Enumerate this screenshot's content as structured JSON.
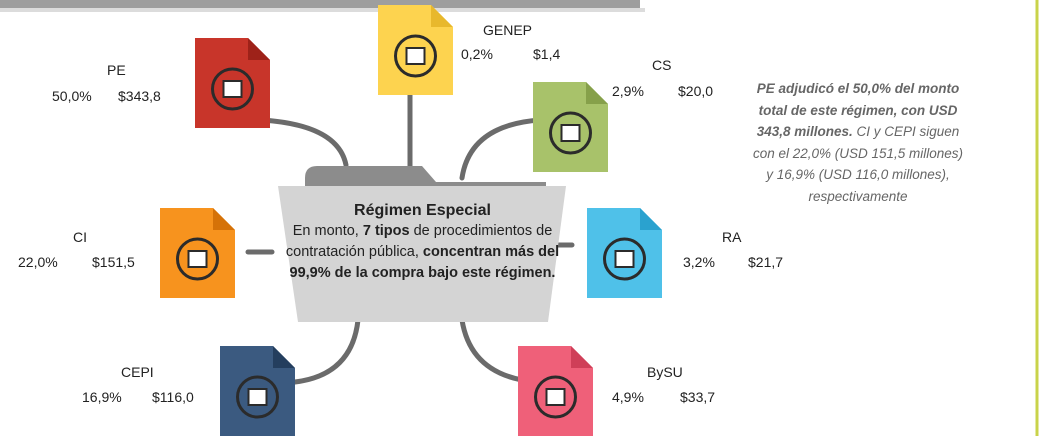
{
  "center": {
    "title": "Régimen Especial",
    "text": [
      "En monto, ",
      "7 tipos",
      " de procedimientos de contratación pública, ",
      "concentran más del 99,9% de la compra bajo este régimen."
    ]
  },
  "nodes": [
    {
      "label": "GENEP",
      "share": "0,2%",
      "amount": "$1,4"
    },
    {
      "label": "PE",
      "share": "50,0%",
      "amount": "$343,8"
    },
    {
      "label": "CS",
      "share": "2,9%",
      "amount": "$20,0"
    },
    {
      "label": "CI",
      "share": "22,0%",
      "amount": "$151,5"
    },
    {
      "label": "RA",
      "share": "3,2%",
      "amount": "$21,7"
    },
    {
      "label": "CEPI",
      "share": "16,9%",
      "amount": "$116,0"
    },
    {
      "label": "BySU",
      "share": "4,9%",
      "amount": "$33,7"
    }
  ],
  "note": [
    "PE adjudicó el 50,0% del monto total de este régimen, con USD 343,8 millones.",
    " CI y CEPI siguen con el 22,0% (USD 151,5 millones) y 16,9% (USD 116,0 millones), respectivamente"
  ]
}
